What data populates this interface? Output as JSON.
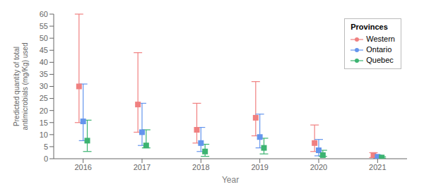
{
  "chart_data": {
    "type": "scatter",
    "xlabel": "Year",
    "ylabel": "Predicted quantity of total antimicrobials (mg/Kg) used",
    "legend_title": "Provinces",
    "x": [
      2016,
      2017,
      2018,
      2019,
      2020,
      2021
    ],
    "xlim": [
      2015.5,
      2021.5
    ],
    "xticks": [
      2016,
      2017,
      2018,
      2019,
      2020,
      2021
    ],
    "ylim": [
      0,
      60
    ],
    "yticks": [
      0,
      5,
      10,
      15,
      20,
      25,
      30,
      35,
      40,
      45,
      50,
      55,
      60
    ],
    "grid": false,
    "legend": "upper right",
    "series": [
      {
        "name": "Western",
        "color": "#F08080",
        "values": [
          30,
          22.5,
          12,
          17,
          6.5,
          1.5
        ],
        "lower": [
          15,
          11,
          6.5,
          9.5,
          3.0,
          0.5
        ],
        "upper": [
          60,
          44,
          23,
          32,
          14,
          2.5
        ]
      },
      {
        "name": "Ontario",
        "color": "#6495ED",
        "values": [
          15.5,
          11,
          6.5,
          9,
          3.5,
          0.8
        ],
        "lower": [
          7.5,
          5.5,
          3.0,
          4.5,
          1.2,
          0.2
        ],
        "upper": [
          31,
          23,
          13,
          18.5,
          8,
          1.5
        ]
      },
      {
        "name": "Quebec",
        "color": "#3CB371",
        "values": [
          7.5,
          5.5,
          3.0,
          4.5,
          1.5,
          0.5
        ],
        "lower": [
          3.0,
          4.5,
          1.0,
          2.0,
          1.0,
          0.2
        ],
        "upper": [
          16,
          12,
          6,
          8.5,
          3.5,
          0.8
        ]
      }
    ]
  }
}
